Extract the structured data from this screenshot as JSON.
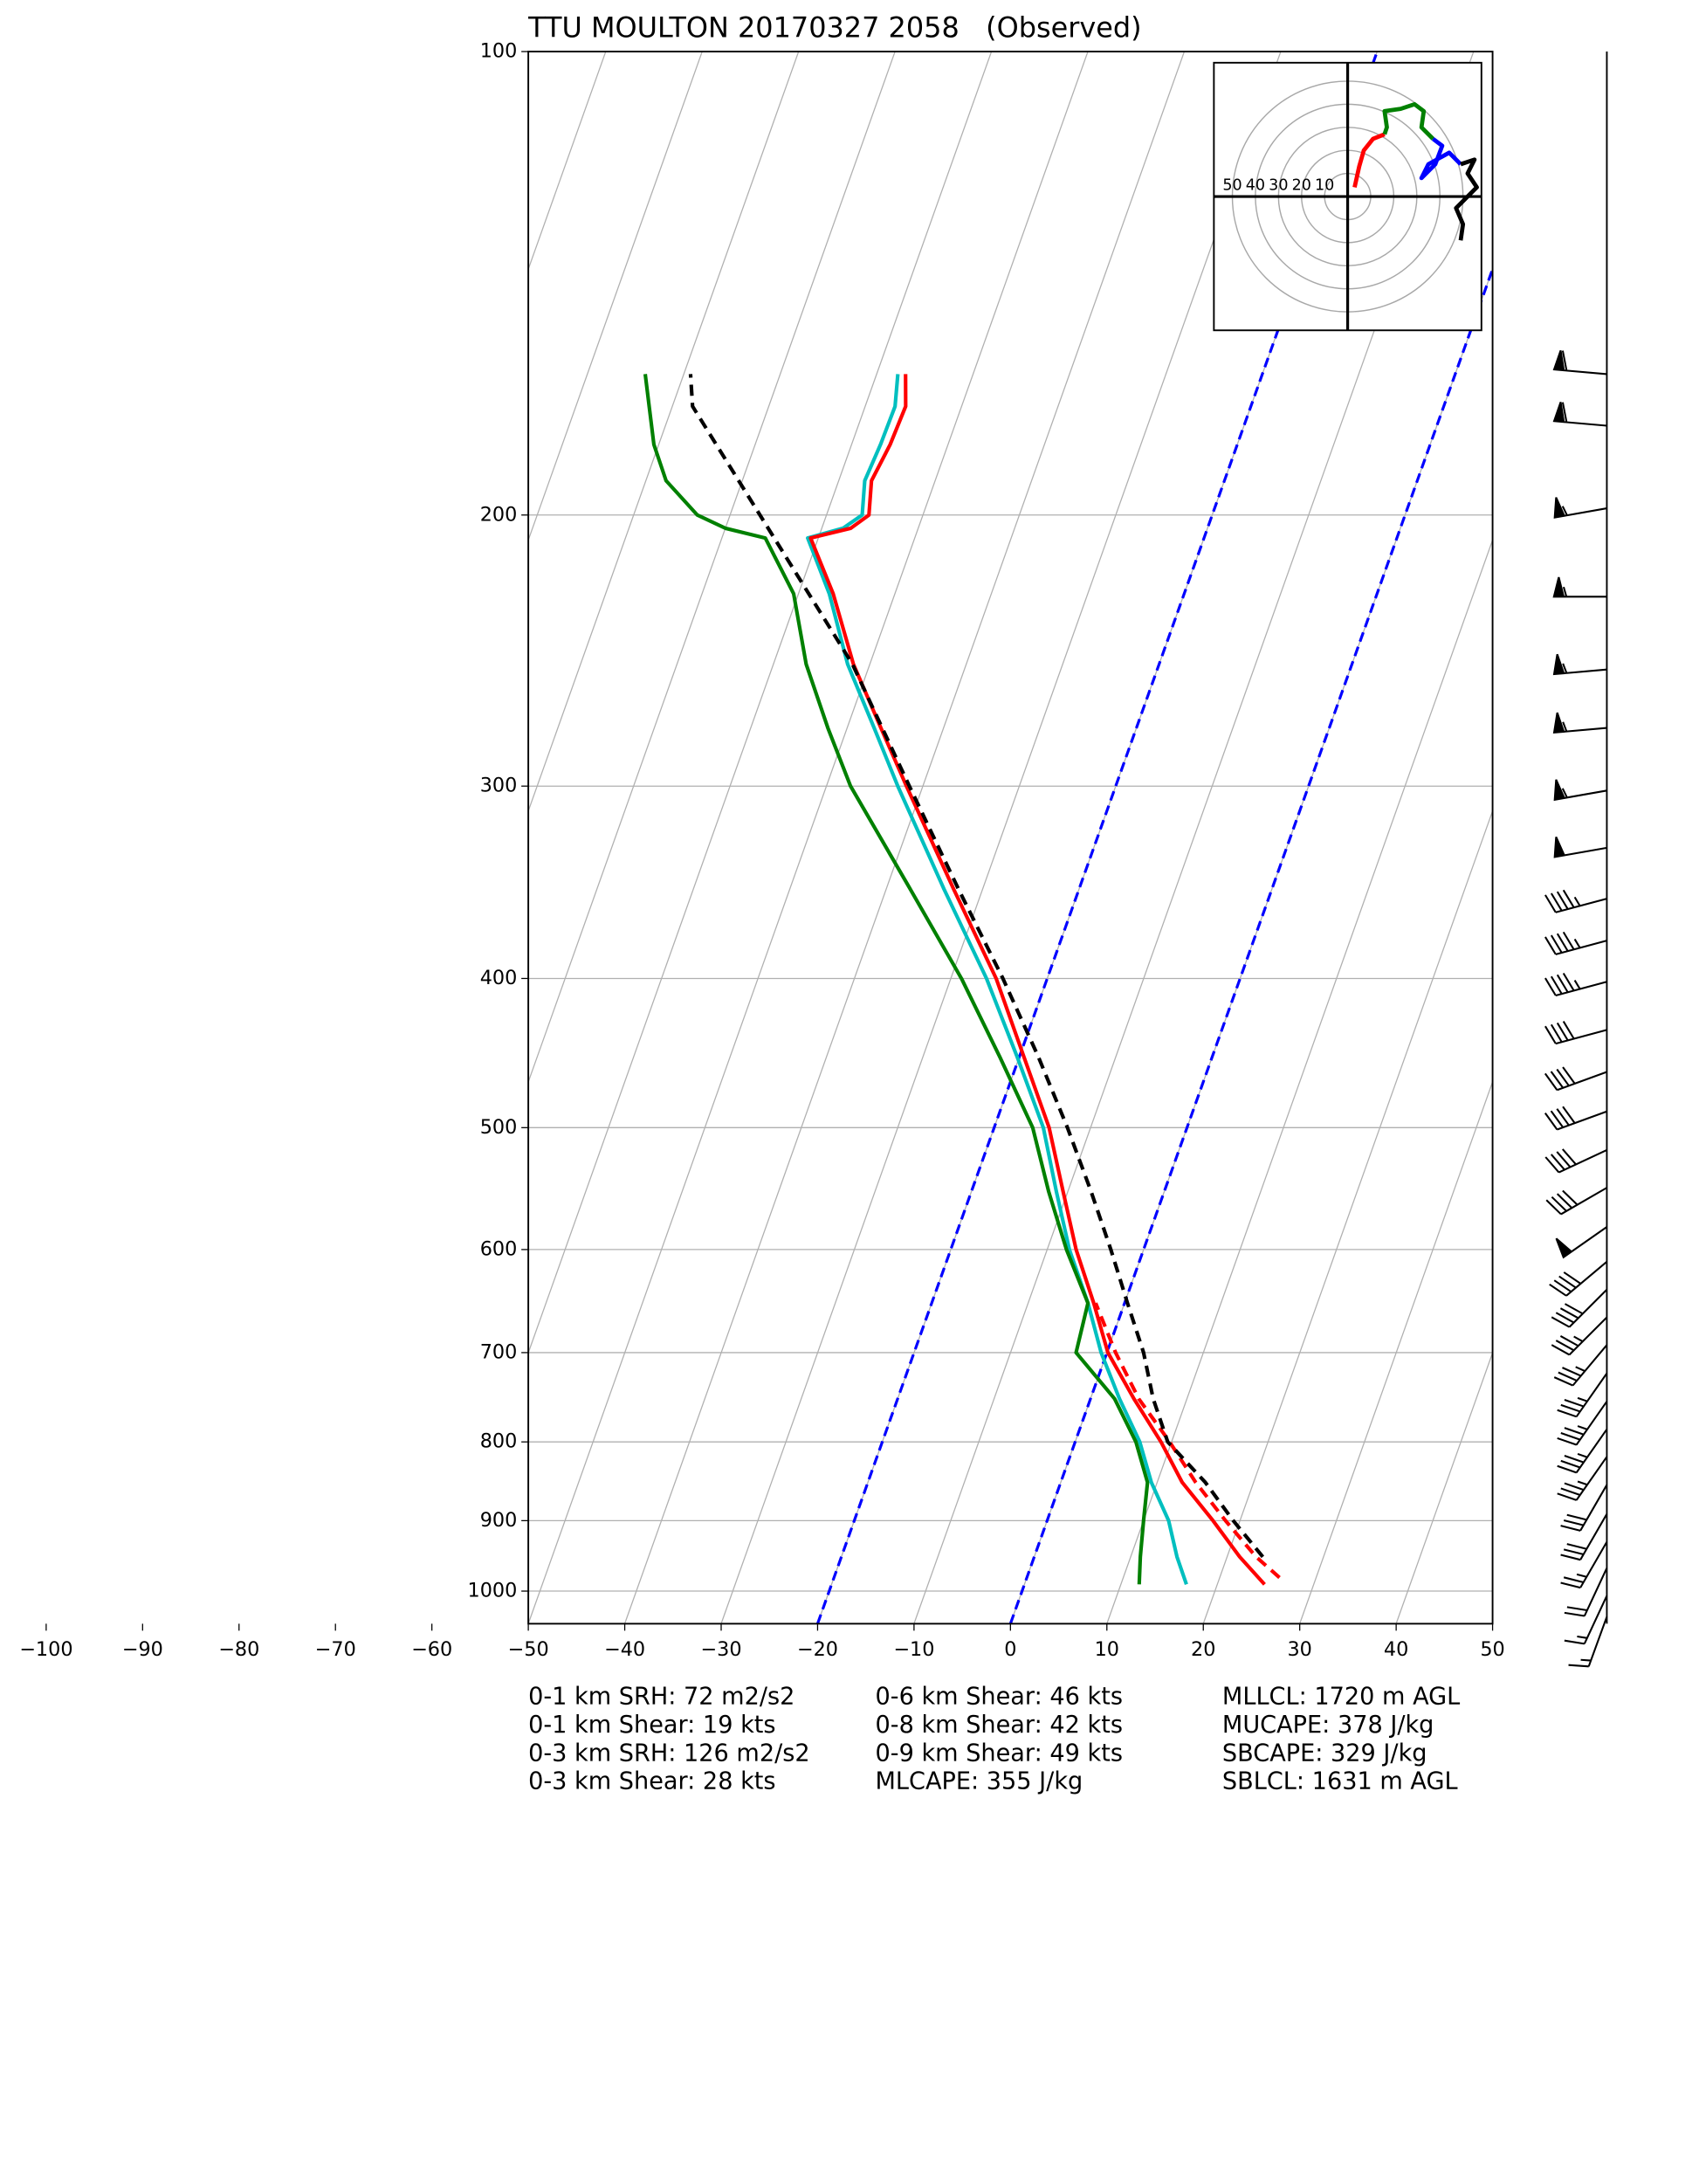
{
  "chart_data": [
    {
      "type": "skewt",
      "title": "TTU MOULTON 20170327 2058   (Observed)",
      "xlim": [
        -50,
        50
      ],
      "ylim": [
        1050,
        100
      ],
      "yscale": "log",
      "grid": true,
      "xticks": [
        {
          "value": -100,
          "label": "−100"
        },
        {
          "value": -90,
          "label": "−90"
        },
        {
          "value": -80,
          "label": "−80"
        },
        {
          "value": -70,
          "label": "−70"
        },
        {
          "value": -60,
          "label": "−60"
        },
        {
          "value": -50,
          "label": "−50"
        },
        {
          "value": -40,
          "label": "−40"
        },
        {
          "value": -30,
          "label": "−30"
        },
        {
          "value": -20,
          "label": "−20"
        },
        {
          "value": -10,
          "label": "−10"
        },
        0,
        10,
        20,
        30,
        40,
        50
      ],
      "yticks": [
        100,
        200,
        300,
        400,
        500,
        600,
        700,
        800,
        900,
        1000
      ],
      "highlight_isotherms": {
        "values": [
          -20,
          0
        ],
        "color": "#0000ff"
      },
      "series": [
        {
          "color": "#ff0000",
          "dashed": true,
          "y": [
            980,
            950,
            900,
            850,
            800,
            750,
            700,
            650
          ],
          "x": [
            26.2,
            23.0,
            18.5,
            14.0,
            9.8,
            5.0,
            0.9,
            -3.0
          ]
        },
        {
          "color": "#00bfbf",
          "dashed": false,
          "y": [
            990,
            950,
            900,
            850,
            800,
            750,
            700,
            650,
            600,
            550,
            500,
            450,
            400,
            350,
            300,
            275,
            250,
            225,
            207,
            204,
            200,
            190,
            180,
            170,
            162
          ],
          "x": [
            16.8,
            14.8,
            12.6,
            9.4,
            6.7,
            3.0,
            -0.6,
            -3.8,
            -7.7,
            -11.2,
            -14.9,
            -20.2,
            -26.3,
            -34.0,
            -42.6,
            -47.2,
            -52.3,
            -56.8,
            -61.1,
            -57.8,
            -56.3,
            -57.3,
            -57.0,
            -56.9,
            -57.8
          ]
        },
        {
          "color": "#ff0000",
          "dashed": false,
          "y": [
            990,
            950,
            900,
            850,
            800,
            750,
            700,
            650,
            600,
            550,
            500,
            450,
            400,
            350,
            300,
            275,
            250,
            225,
            207,
            204,
            200,
            190,
            180,
            170,
            162
          ],
          "x": [
            24.9,
            21.3,
            17.2,
            12.6,
            8.9,
            4.5,
            0.1,
            -3.2,
            -7.0,
            -10.5,
            -14.3,
            -19.5,
            -25.3,
            -33.0,
            -41.7,
            -46.5,
            -51.7,
            -56.4,
            -60.8,
            -57.0,
            -55.6,
            -56.6,
            -56.0,
            -55.8,
            -57.0
          ]
        },
        {
          "color": "#008000",
          "dashed": false,
          "y": [
            990,
            950,
            900,
            850,
            800,
            750,
            700,
            650,
            600,
            550,
            500,
            450,
            400,
            350,
            300,
            275,
            250,
            225,
            207,
            204,
            200,
            190,
            180,
            170,
            162
          ],
          "x": [
            11.9,
            11.0,
            10.0,
            9.0,
            6.3,
            2.5,
            -3.2,
            -3.8,
            -8.0,
            -12.0,
            -16.0,
            -22.0,
            -28.9,
            -37.5,
            -47.5,
            -52.0,
            -56.6,
            -60.5,
            -65.5,
            -70.0,
            -73.4,
            -77.9,
            -80.5,
            -82.4,
            -84.0
          ]
        },
        {
          "color": "#000000",
          "dashed": true,
          "y": [
            950,
            900,
            850,
            800,
            750,
            700,
            650,
            600,
            550,
            500,
            450,
            400,
            350,
            300,
            250,
            200,
            170,
            162
          ],
          "x": [
            23.7,
            19.3,
            15.0,
            9.6,
            6.5,
            3.8,
            0.3,
            -3.4,
            -7.6,
            -12.4,
            -18.0,
            -24.6,
            -32.5,
            -41.4,
            -51.8,
            -66.9,
            -77.9,
            -79.3
          ]
        }
      ],
      "wind": {
        "color": "#000000",
        "pressure": [
          162,
          175,
          198,
          226,
          252,
          275,
          302,
          329,
          355,
          378,
          402,
          432,
          460,
          488,
          517,
          547,
          580,
          611,
          637,
          664,
          692,
          722,
          753,
          785,
          818,
          853,
          891,
          929,
          966,
          1007,
          1039
        ],
        "speed": [
          60,
          60,
          55,
          55,
          55,
          55,
          55,
          50,
          45,
          45,
          45,
          40,
          40,
          40,
          40,
          40,
          50,
          40,
          40,
          35,
          35,
          35,
          35,
          35,
          35,
          30,
          30,
          25,
          20,
          15,
          15
        ],
        "direction": [
          275,
          275,
          260,
          270,
          265,
          265,
          260,
          260,
          255,
          255,
          255,
          255,
          250,
          250,
          245,
          240,
          235,
          230,
          225,
          225,
          220,
          215,
          215,
          215,
          215,
          210,
          210,
          210,
          205,
          205,
          200
        ]
      },
      "annotations": [
        [
          "0-1 km SRH: 72 m2/s2",
          "0-1 km Shear: 19 kts",
          "0-3 km SRH: 126 m2/s2",
          "0-3 km Shear: 28 kts"
        ],
        [
          "0-6 km Shear: 46 kts",
          "0-8 km Shear: 42 kts",
          "0-9 km Shear: 49 kts",
          "MLCAPE: 355 J/kg"
        ],
        [
          "MLLCL: 1720 m AGL",
          "MUCAPE: 378 J/kg",
          "SBCAPE: 329 J/kg",
          "SBLCL: 1631 m AGL"
        ]
      ]
    },
    {
      "type": "hodograph",
      "xlim": [
        -58,
        58
      ],
      "ylim": [
        -58,
        58
      ],
      "rticks": [
        50,
        40,
        30,
        20,
        10
      ],
      "series": [
        {
          "color": "#ff0000",
          "x": [
            3,
            5,
            7,
            11,
            16
          ],
          "y": [
            4,
            13,
            20,
            25,
            27
          ]
        },
        {
          "color": "#008000",
          "x": [
            16,
            17,
            16,
            23,
            29,
            33,
            32,
            37
          ],
          "y": [
            27,
            30,
            37,
            38,
            40,
            37,
            30,
            25
          ]
        },
        {
          "color": "#0000ff",
          "x": [
            37,
            41,
            38,
            32,
            35,
            44,
            49
          ],
          "y": [
            25,
            22,
            14,
            8,
            14,
            19,
            14
          ]
        },
        {
          "color": "#000000",
          "x": [
            49,
            55,
            52,
            56,
            47,
            50,
            49
          ],
          "y": [
            14,
            16,
            10,
            4,
            -5,
            -12,
            -19
          ]
        }
      ]
    }
  ]
}
